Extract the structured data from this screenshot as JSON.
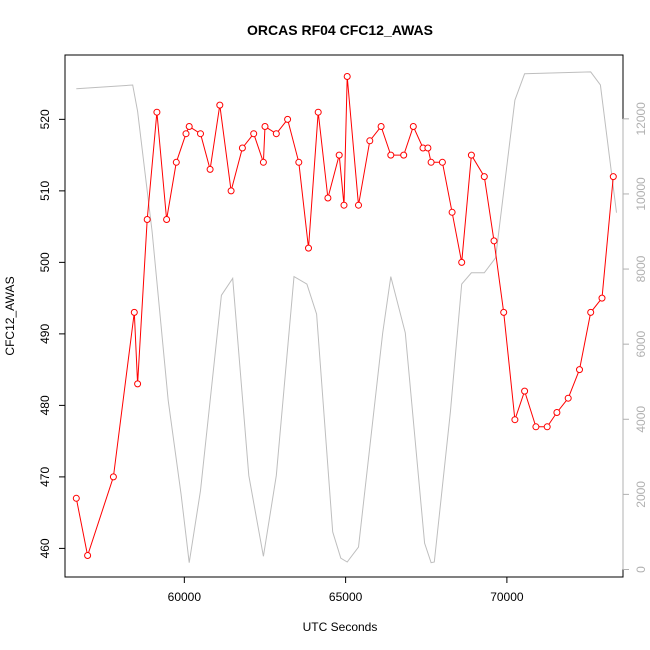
{
  "chart_data": {
    "type": "line",
    "title": "ORCAS RF04 CFC12_AWAS",
    "xlabel": "UTC Seconds",
    "ylabel": "CFC12_AWAS",
    "xlim": [
      56300,
      73600
    ],
    "ylim": [
      456,
      529
    ],
    "ylim_right": [
      -200,
      13700
    ],
    "x_ticks": [
      60000,
      65000,
      70000
    ],
    "y_ticks": [
      460,
      470,
      480,
      490,
      500,
      510,
      520
    ],
    "y_ticks_right": [
      0,
      2000,
      4000,
      6000,
      8000,
      10000,
      12000
    ],
    "colors": {
      "primary": "#ff0000",
      "secondary": "#bebebe",
      "axis": "#000000",
      "right_axis": "#b0b0b0"
    },
    "grid": false,
    "series": [
      {
        "color": "#ff0000",
        "markers": "open-circle",
        "x": [
          56650,
          57000,
          57800,
          58450,
          58550,
          58850,
          59150,
          59450,
          59750,
          60050,
          60150,
          60500,
          60800,
          61100,
          61450,
          61800,
          62150,
          62450,
          62500,
          62850,
          63200,
          63550,
          63850,
          64150,
          64450,
          64800,
          64950,
          65050,
          65400,
          65750,
          66100,
          66400,
          66800,
          67100,
          67400,
          67550,
          67650,
          68000,
          68300,
          68600,
          68900,
          69300,
          69600,
          69900,
          70250,
          70550,
          70900,
          71250,
          71550,
          71900,
          72250,
          72600,
          72950,
          73300
        ],
        "y": [
          467,
          459,
          470,
          493,
          483,
          506,
          521,
          506,
          514,
          518,
          519,
          518,
          513,
          522,
          510,
          516,
          518,
          514,
          519,
          518,
          520,
          514,
          502,
          521,
          509,
          515,
          508,
          526,
          508,
          517,
          519,
          515,
          515,
          519,
          516,
          516,
          514,
          514,
          507,
          500,
          515,
          512,
          503,
          493,
          478,
          482,
          477,
          477,
          479,
          481,
          485,
          493,
          495,
          512
        ]
      },
      {
        "color": "#bebebe",
        "markers": "none",
        "x": [
          56650,
          58400,
          58550,
          59000,
          59500,
          59900,
          60150,
          60500,
          61150,
          61500,
          62000,
          62450,
          62850,
          63400,
          63800,
          64100,
          64600,
          64850,
          65050,
          65400,
          66150,
          66400,
          66850,
          67450,
          67650,
          67750,
          68250,
          68600,
          68900,
          69300,
          69650,
          70250,
          70550,
          72600,
          72900,
          73400
        ],
        "y": [
          12800,
          12900,
          12200,
          9000,
          4500,
          2000,
          180,
          2100,
          7300,
          7750,
          2500,
          350,
          2500,
          7800,
          7600,
          6800,
          1000,
          300,
          200,
          600,
          6300,
          7800,
          6300,
          700,
          180,
          200,
          4200,
          7600,
          7900,
          7900,
          8300,
          12500,
          13200,
          13250,
          12900,
          9500
        ]
      }
    ]
  }
}
